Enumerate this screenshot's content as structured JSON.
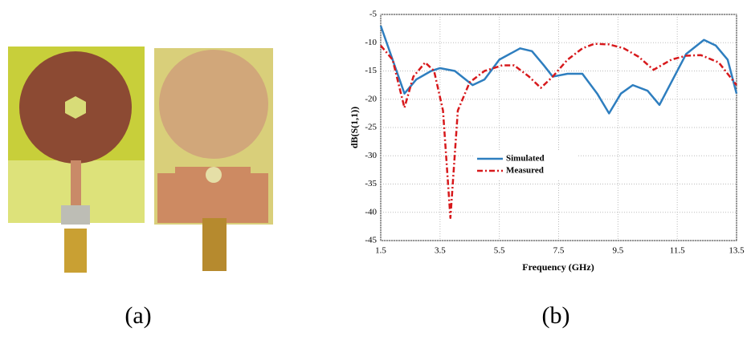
{
  "captions": [
    "(a)",
    "(b)"
  ],
  "chart_data": {
    "type": "line",
    "xlabel": "Frequency (GHz)",
    "ylabel": "dB(S(1,1))",
    "xlim": [
      1.5,
      13.5
    ],
    "ylim": [
      -45,
      -5
    ],
    "xticks": [
      1.5,
      3.5,
      5.5,
      7.5,
      9.5,
      11.5,
      13.5
    ],
    "yticks": [
      -5,
      -10,
      -15,
      -20,
      -25,
      -30,
      -35,
      -40,
      -45
    ],
    "grid": true,
    "legend": "center",
    "series": [
      {
        "name": "Simulated",
        "color": "#2e7ebf",
        "style": "solid",
        "x": [
          1.5,
          1.9,
          2.3,
          2.7,
          3.2,
          3.5,
          4.0,
          4.6,
          5.0,
          5.5,
          6.2,
          6.6,
          7.0,
          7.3,
          7.8,
          8.3,
          8.8,
          9.2,
          9.6,
          10.0,
          10.5,
          10.9,
          11.3,
          11.8,
          12.4,
          12.8,
          13.2,
          13.5
        ],
        "values": [
          -7,
          -13,
          -19,
          -16.5,
          -15,
          -14.5,
          -15,
          -17.5,
          -16.5,
          -13,
          -11,
          -11.5,
          -14,
          -16,
          -15.5,
          -15.5,
          -19,
          -22.5,
          -19,
          -17.5,
          -18.5,
          -21,
          -17,
          -12,
          -9.5,
          -10.5,
          -13,
          -19
        ]
      },
      {
        "name": "Measured",
        "color": "#d7191c",
        "style": "dashdot",
        "x": [
          1.5,
          1.9,
          2.3,
          2.6,
          3.0,
          3.3,
          3.6,
          3.85,
          4.1,
          4.5,
          5.0,
          5.6,
          6.0,
          6.5,
          6.9,
          7.3,
          7.8,
          8.3,
          8.7,
          9.2,
          9.7,
          10.2,
          10.7,
          11.3,
          11.8,
          12.3,
          12.9,
          13.5
        ],
        "values": [
          -10.5,
          -13,
          -21.5,
          -16,
          -13.5,
          -15,
          -22,
          -41,
          -22,
          -17,
          -15,
          -14,
          -14,
          -16,
          -18,
          -16,
          -13,
          -11,
          -10.2,
          -10.3,
          -11,
          -12.5,
          -14.8,
          -13,
          -12.3,
          -12.2,
          -13.5,
          -17.5
        ]
      }
    ]
  }
}
